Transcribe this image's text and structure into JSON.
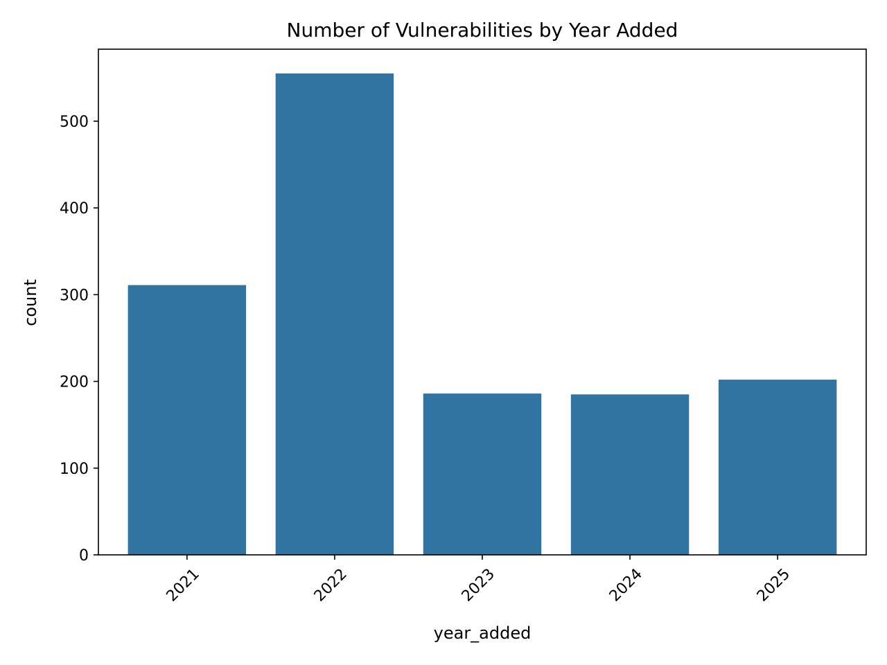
{
  "chart_data": {
    "type": "bar",
    "title": "Number of Vulnerabilities by Year Added",
    "xlabel": "year_added",
    "ylabel": "count",
    "categories": [
      "2021",
      "2022",
      "2023",
      "2024",
      "2025"
    ],
    "values": [
      311,
      555,
      186,
      185,
      202
    ],
    "ylim": [
      0,
      583
    ],
    "yticks": [
      0,
      100,
      200,
      300,
      400,
      500
    ],
    "xtick_rotation": 45,
    "bar_color": "#3274a1",
    "grid": false,
    "legend": "none"
  }
}
